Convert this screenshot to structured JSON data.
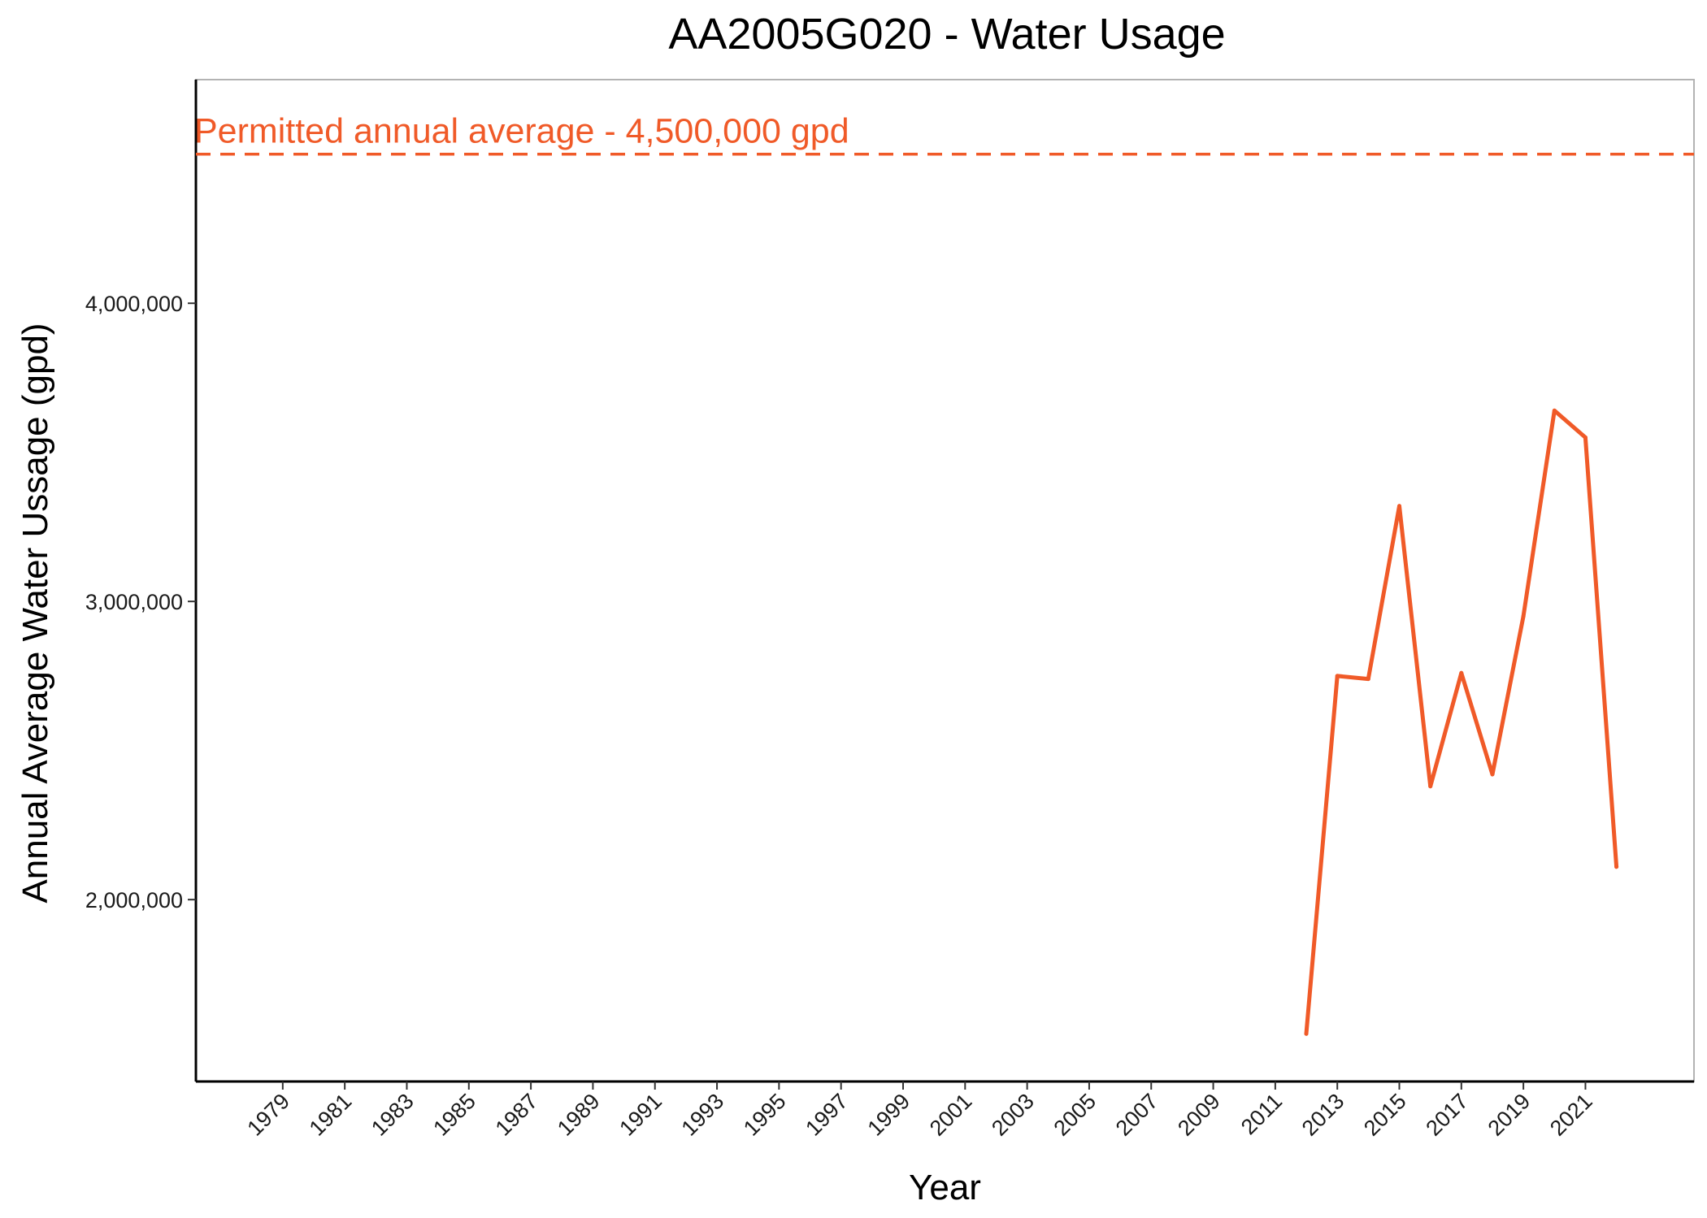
{
  "chart_data": {
    "type": "line",
    "title": "AA2005G020 - Water Usage",
    "xlabel": "Year",
    "ylabel": "Annual Average Water Ussage (gpd)",
    "xlim": [
      1976.2,
      2024.5
    ],
    "ylim": [
      1390000,
      4750000
    ],
    "x_ticks": [
      1979,
      1981,
      1983,
      1985,
      1987,
      1989,
      1991,
      1993,
      1995,
      1997,
      1999,
      2001,
      2003,
      2005,
      2007,
      2009,
      2011,
      2013,
      2015,
      2017,
      2019,
      2021
    ],
    "x_tick_labels": [
      "1979",
      "1981",
      "1983",
      "1985",
      "1987",
      "1989",
      "1991",
      "1993",
      "1995",
      "1997",
      "1999",
      "2001",
      "2003",
      "2005",
      "2007",
      "2009",
      "2011",
      "2013",
      "2015",
      "2017",
      "2019",
      "2021"
    ],
    "y_ticks": [
      2000000,
      3000000,
      4000000
    ],
    "y_tick_labels": [
      "2,000,000",
      "3,000,000",
      "4,000,000"
    ],
    "grid": false,
    "series": [
      {
        "color": "#f05a28",
        "x": [
          2012,
          2013,
          2014,
          2015,
          2016,
          2017,
          2018,
          2019,
          2020,
          2021,
          2022
        ],
        "y": [
          1550000,
          2750000,
          2740000,
          3320000,
          2380000,
          2760000,
          2420000,
          2950000,
          3640000,
          3550000,
          2110000
        ]
      }
    ],
    "reference_line": {
      "value": 4500000,
      "style": "dashed",
      "color": "#f05a28",
      "label": "Permitted annual average - 4,500,000 gpd"
    }
  }
}
